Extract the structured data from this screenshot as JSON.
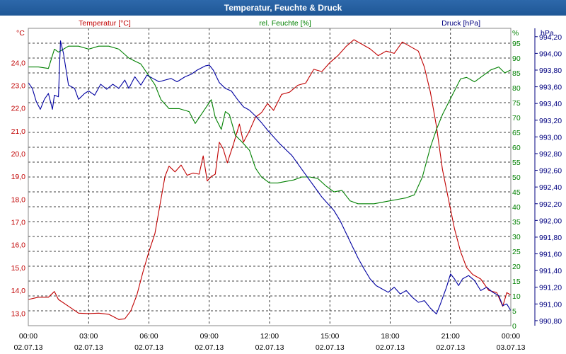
{
  "window": {
    "title": "Temperatur, Feuchte & Druck"
  },
  "chart_data": {
    "type": "line",
    "title": "Temperatur, Feuchte & Druck",
    "grid": true,
    "x": {
      "range_hours": [
        0,
        24
      ],
      "ticks": [
        {
          "hour": 0,
          "time": "00:00",
          "date": "02.07.13"
        },
        {
          "hour": 3,
          "time": "03:00",
          "date": "02.07.13"
        },
        {
          "hour": 6,
          "time": "06:00",
          "date": "02.07.13"
        },
        {
          "hour": 9,
          "time": "09:00",
          "date": "02.07.13"
        },
        {
          "hour": 12,
          "time": "12:00",
          "date": "02.07.13"
        },
        {
          "hour": 15,
          "time": "15:00",
          "date": "02.07.13"
        },
        {
          "hour": 18,
          "time": "18:00",
          "date": "02.07.13"
        },
        {
          "hour": 21,
          "time": "21:00",
          "date": "02.07.13"
        },
        {
          "hour": 24,
          "time": "00:00",
          "date": "03.07.13"
        }
      ]
    },
    "axes": {
      "temperature": {
        "label": "Temperatur [°C]",
        "unit": "°C",
        "range": [
          12.45,
          25.5
        ],
        "ticks": [
          "13,0",
          "14,0",
          "15,0",
          "16,0",
          "17,0",
          "18,0",
          "19,0",
          "20,0",
          "21,0",
          "22,0",
          "23,0",
          "24,0"
        ],
        "tick_values": [
          13,
          14,
          15,
          16,
          17,
          18,
          19,
          20,
          21,
          22,
          23,
          24
        ]
      },
      "humidity": {
        "label": "rel. Feuchte [%]",
        "unit": "%",
        "range": [
          0,
          100
        ],
        "ticks": [
          "0",
          "5",
          "10",
          "15",
          "20",
          "25",
          "30",
          "35",
          "40",
          "45",
          "50",
          "55",
          "60",
          "65",
          "70",
          "75",
          "80",
          "85",
          "90",
          "95"
        ],
        "tick_values": [
          0,
          5,
          10,
          15,
          20,
          25,
          30,
          35,
          40,
          45,
          50,
          55,
          60,
          65,
          70,
          75,
          80,
          85,
          90,
          95
        ]
      },
      "pressure": {
        "label": "Druck [hPa]",
        "unit": "hPa",
        "range": [
          990.74,
          994.3
        ],
        "ticks": [
          "990,80",
          "991,00",
          "991,20",
          "991,40",
          "991,60",
          "991,80",
          "992,00",
          "992,20",
          "992,40",
          "992,60",
          "992,80",
          "993,00",
          "993,20",
          "993,40",
          "993,60",
          "993,80",
          "994,00",
          "994,20"
        ],
        "tick_values": [
          990.8,
          991.0,
          991.2,
          991.4,
          991.6,
          991.8,
          992.0,
          992.2,
          992.4,
          992.6,
          992.8,
          993.0,
          993.2,
          993.4,
          993.6,
          993.8,
          994.0,
          994.2
        ]
      }
    },
    "series": [
      {
        "name": "Temperatur [°C]",
        "axis": "temperature",
        "color": "#c00000",
        "points": [
          [
            0,
            13.6
          ],
          [
            0.5,
            13.7
          ],
          [
            1,
            13.7
          ],
          [
            1.3,
            13.95
          ],
          [
            1.5,
            13.6
          ],
          [
            2,
            13.3
          ],
          [
            2.5,
            13.0
          ],
          [
            3,
            12.98
          ],
          [
            3.5,
            13.0
          ],
          [
            4,
            12.95
          ],
          [
            4.5,
            12.72
          ],
          [
            4.8,
            12.75
          ],
          [
            5.1,
            13.1
          ],
          [
            5.4,
            13.8
          ],
          [
            5.7,
            14.8
          ],
          [
            6,
            15.7
          ],
          [
            6.3,
            16.5
          ],
          [
            6.6,
            18.0
          ],
          [
            6.8,
            19.0
          ],
          [
            7,
            19.45
          ],
          [
            7.3,
            19.2
          ],
          [
            7.6,
            19.5
          ],
          [
            7.9,
            19.05
          ],
          [
            8.2,
            19.15
          ],
          [
            8.5,
            19.1
          ],
          [
            8.7,
            19.9
          ],
          [
            8.9,
            18.8
          ],
          [
            9.1,
            19.0
          ],
          [
            9.3,
            19.1
          ],
          [
            9.5,
            20.5
          ],
          [
            9.7,
            20.2
          ],
          [
            9.9,
            19.6
          ],
          [
            10.2,
            20.4
          ],
          [
            10.5,
            21.3
          ],
          [
            10.7,
            20.5
          ],
          [
            11,
            21.0
          ],
          [
            11.3,
            21.6
          ],
          [
            11.6,
            21.8
          ],
          [
            11.9,
            22.2
          ],
          [
            12.2,
            21.9
          ],
          [
            12.6,
            22.6
          ],
          [
            13,
            22.7
          ],
          [
            13.4,
            23.0
          ],
          [
            13.8,
            23.1
          ],
          [
            14.2,
            23.7
          ],
          [
            14.6,
            23.6
          ],
          [
            15,
            24.0
          ],
          [
            15.4,
            24.3
          ],
          [
            15.8,
            24.7
          ],
          [
            16.2,
            25.0
          ],
          [
            16.6,
            24.8
          ],
          [
            17,
            24.6
          ],
          [
            17.4,
            24.3
          ],
          [
            17.8,
            24.5
          ],
          [
            18.2,
            24.4
          ],
          [
            18.6,
            24.9
          ],
          [
            19,
            24.7
          ],
          [
            19.4,
            24.5
          ],
          [
            19.7,
            23.8
          ],
          [
            20,
            22.7
          ],
          [
            20.3,
            21.2
          ],
          [
            20.6,
            19.3
          ],
          [
            20.9,
            18.0
          ],
          [
            21.2,
            16.7
          ],
          [
            21.5,
            15.7
          ],
          [
            21.8,
            15.0
          ],
          [
            22.1,
            14.7
          ],
          [
            22.5,
            14.5
          ],
          [
            22.9,
            14.0
          ],
          [
            23.3,
            13.9
          ],
          [
            23.6,
            13.3
          ],
          [
            23.8,
            13.9
          ],
          [
            24,
            13.8
          ]
        ]
      },
      {
        "name": "rel. Feuchte [%]",
        "axis": "humidity",
        "color": "#008000",
        "points": [
          [
            0,
            87
          ],
          [
            0.5,
            87
          ],
          [
            1,
            86.5
          ],
          [
            1.3,
            93
          ],
          [
            1.5,
            92
          ],
          [
            2,
            94
          ],
          [
            2.5,
            94
          ],
          [
            3,
            93
          ],
          [
            3.5,
            94
          ],
          [
            4,
            94
          ],
          [
            4.5,
            93
          ],
          [
            5,
            90
          ],
          [
            5.3,
            89
          ],
          [
            5.6,
            88
          ],
          [
            6,
            84
          ],
          [
            6.3,
            81
          ],
          [
            6.6,
            76
          ],
          [
            7,
            73
          ],
          [
            7.5,
            73
          ],
          [
            8,
            72
          ],
          [
            8.3,
            68
          ],
          [
            8.6,
            71
          ],
          [
            8.9,
            74
          ],
          [
            9.1,
            76
          ],
          [
            9.3,
            70
          ],
          [
            9.6,
            66
          ],
          [
            9.8,
            72
          ],
          [
            10,
            71
          ],
          [
            10.3,
            64
          ],
          [
            10.6,
            62
          ],
          [
            11,
            59
          ],
          [
            11.3,
            53
          ],
          [
            11.6,
            50
          ],
          [
            12,
            48
          ],
          [
            12.4,
            48
          ],
          [
            12.8,
            48.5
          ],
          [
            13.2,
            49
          ],
          [
            13.6,
            50
          ],
          [
            14,
            50
          ],
          [
            14.4,
            49.5
          ],
          [
            14.8,
            47
          ],
          [
            15.2,
            45
          ],
          [
            15.6,
            45.5
          ],
          [
            16,
            42
          ],
          [
            16.4,
            41
          ],
          [
            16.8,
            41
          ],
          [
            17.2,
            41
          ],
          [
            17.6,
            41.5
          ],
          [
            18,
            42
          ],
          [
            18.4,
            42.5
          ],
          [
            18.8,
            43
          ],
          [
            19.2,
            44
          ],
          [
            19.6,
            50
          ],
          [
            20,
            60
          ],
          [
            20.3,
            66
          ],
          [
            20.6,
            71
          ],
          [
            20.9,
            75
          ],
          [
            21.2,
            79
          ],
          [
            21.5,
            83
          ],
          [
            21.8,
            83.5
          ],
          [
            22.2,
            82
          ],
          [
            22.6,
            84
          ],
          [
            23,
            86
          ],
          [
            23.4,
            87
          ],
          [
            23.7,
            85
          ],
          [
            24,
            86
          ]
        ]
      },
      {
        "name": "Druck [hPa]",
        "axis": "pressure",
        "color": "#0000a0",
        "points": [
          [
            0,
            993.65
          ],
          [
            0.2,
            993.58
          ],
          [
            0.4,
            993.42
          ],
          [
            0.6,
            993.33
          ],
          [
            0.8,
            993.45
          ],
          [
            1,
            993.52
          ],
          [
            1.2,
            993.33
          ],
          [
            1.3,
            993.5
          ],
          [
            1.5,
            993.48
          ],
          [
            1.6,
            994.15
          ],
          [
            1.75,
            994.0
          ],
          [
            2,
            993.62
          ],
          [
            2.3,
            993.58
          ],
          [
            2.5,
            993.45
          ],
          [
            2.8,
            993.52
          ],
          [
            3,
            993.55
          ],
          [
            3.3,
            993.5
          ],
          [
            3.6,
            993.63
          ],
          [
            3.9,
            993.57
          ],
          [
            4.2,
            993.63
          ],
          [
            4.5,
            993.58
          ],
          [
            4.8,
            993.68
          ],
          [
            5,
            993.58
          ],
          [
            5.3,
            993.72
          ],
          [
            5.6,
            993.62
          ],
          [
            5.9,
            993.74
          ],
          [
            6.2,
            993.7
          ],
          [
            6.5,
            993.66
          ],
          [
            6.8,
            993.68
          ],
          [
            7.1,
            993.7
          ],
          [
            7.4,
            993.66
          ],
          [
            7.8,
            993.72
          ],
          [
            8.1,
            993.75
          ],
          [
            8.4,
            993.8
          ],
          [
            8.8,
            993.85
          ],
          [
            9,
            993.86
          ],
          [
            9.2,
            993.8
          ],
          [
            9.5,
            993.65
          ],
          [
            9.8,
            993.58
          ],
          [
            10.1,
            993.55
          ],
          [
            10.4,
            993.45
          ],
          [
            10.7,
            993.36
          ],
          [
            11,
            993.32
          ],
          [
            11.3,
            993.25
          ],
          [
            11.6,
            993.17
          ],
          [
            11.9,
            993.08
          ],
          [
            12.2,
            993.0
          ],
          [
            12.5,
            992.92
          ],
          [
            12.8,
            992.85
          ],
          [
            13.1,
            992.78
          ],
          [
            13.4,
            992.68
          ],
          [
            13.7,
            992.58
          ],
          [
            14,
            992.48
          ],
          [
            14.3,
            992.38
          ],
          [
            14.6,
            992.28
          ],
          [
            14.9,
            992.2
          ],
          [
            15.2,
            992.12
          ],
          [
            15.5,
            992.0
          ],
          [
            15.8,
            991.85
          ],
          [
            16.1,
            991.7
          ],
          [
            16.4,
            991.55
          ],
          [
            16.7,
            991.42
          ],
          [
            17,
            991.3
          ],
          [
            17.3,
            991.22
          ],
          [
            17.6,
            991.18
          ],
          [
            17.9,
            991.14
          ],
          [
            18.2,
            991.2
          ],
          [
            18.5,
            991.12
          ],
          [
            18.8,
            991.16
          ],
          [
            19.1,
            991.08
          ],
          [
            19.4,
            991.02
          ],
          [
            19.7,
            991.04
          ],
          [
            20,
            990.95
          ],
          [
            20.3,
            990.88
          ],
          [
            20.5,
            991.0
          ],
          [
            20.8,
            991.2
          ],
          [
            21,
            991.36
          ],
          [
            21.2,
            991.3
          ],
          [
            21.4,
            991.22
          ],
          [
            21.6,
            991.3
          ],
          [
            21.9,
            991.34
          ],
          [
            22.2,
            991.28
          ],
          [
            22.5,
            991.16
          ],
          [
            22.8,
            991.2
          ],
          [
            23.1,
            991.14
          ],
          [
            23.4,
            991.1
          ],
          [
            23.6,
            990.98
          ],
          [
            23.8,
            991.0
          ],
          [
            24,
            990.92
          ]
        ]
      }
    ]
  }
}
